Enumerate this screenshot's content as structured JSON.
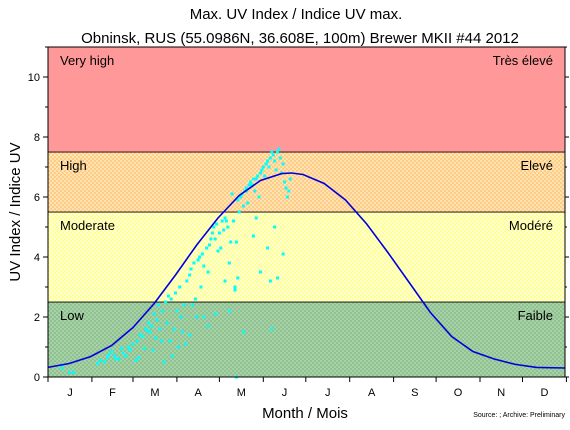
{
  "chart_data": {
    "type": "line",
    "title": "Max. UV Index / Indice UV max.",
    "subtitle": "Obninsk, RUS (55.0986N, 36.608E, 100m) Brewer MKII #44 2012",
    "xlabel": "Month / Mois",
    "ylabel": "UV Index / Indice UV",
    "source_note": "Source: ; Archive: Preliminary",
    "xlim": [
      0,
      365
    ],
    "ylim": [
      0,
      11
    ],
    "y_ticks": [
      0,
      2,
      4,
      6,
      8,
      10
    ],
    "month_labels": [
      "J",
      "F",
      "M",
      "A",
      "M",
      "J",
      "J",
      "A",
      "S",
      "O",
      "N",
      "D"
    ],
    "grid": false,
    "bands": [
      {
        "from": 0,
        "to": 2.5,
        "label_left": "Low",
        "label_right": "Faible",
        "color": "#8ec28e",
        "pattern": "#a9d1a9"
      },
      {
        "from": 2.5,
        "to": 5.5,
        "label_left": "Moderate",
        "label_right": "Modéré",
        "color": "#ffff9a",
        "pattern": "#ffffd0"
      },
      {
        "from": 5.5,
        "to": 7.5,
        "label_left": "High",
        "label_right": "Elevé",
        "color": "#ffcc88",
        "pattern": "#ffe3b0"
      },
      {
        "from": 7.5,
        "to": 11,
        "label_left": "Very high",
        "label_right": "Très élevé",
        "color": "#ff9999",
        "pattern": "#ff9999"
      }
    ],
    "series": [
      {
        "kind": "line",
        "color": "#0000dd",
        "x": [
          0,
          15,
          30,
          45,
          60,
          75,
          90,
          105,
          120,
          135,
          150,
          165,
          172,
          180,
          195,
          210,
          225,
          240,
          255,
          270,
          285,
          300,
          315,
          330,
          345,
          365
        ],
        "y": [
          0.32,
          0.45,
          0.68,
          1.05,
          1.65,
          2.45,
          3.4,
          4.4,
          5.3,
          6.05,
          6.55,
          6.78,
          6.8,
          6.75,
          6.45,
          5.9,
          5.1,
          4.15,
          3.15,
          2.15,
          1.35,
          0.85,
          0.6,
          0.42,
          0.32,
          0.3
        ]
      },
      {
        "kind": "scatter",
        "color": "#00ffff",
        "x": [
          10,
          15,
          18,
          35,
          37,
          40,
          42,
          43,
          45,
          47,
          48,
          50,
          52,
          53,
          55,
          57,
          58,
          60,
          62,
          63,
          64,
          65,
          67,
          68,
          69,
          70,
          71,
          72,
          73,
          74,
          75,
          76,
          77,
          78,
          79,
          80,
          81,
          82,
          83,
          84,
          85,
          86,
          87,
          88,
          89,
          90,
          91,
          92,
          93,
          94,
          95,
          96,
          97,
          98,
          100,
          101,
          102,
          103,
          104,
          105,
          106,
          107,
          108,
          109,
          110,
          112,
          113,
          114,
          115,
          116,
          117,
          118,
          119,
          120,
          121,
          122,
          123,
          124,
          125,
          126,
          127,
          128,
          129,
          130,
          131,
          132,
          133,
          134,
          135,
          136,
          137,
          138,
          139,
          140,
          141,
          142,
          143,
          144,
          145,
          146,
          147,
          148,
          149,
          150,
          151,
          152,
          153,
          154,
          155,
          156,
          157,
          158,
          159,
          160,
          161,
          162,
          163,
          164,
          165,
          166,
          167,
          168,
          169,
          170,
          171
        ],
        "y": [
          0.3,
          0.15,
          0.15,
          0.45,
          0.55,
          0.5,
          0.65,
          0.75,
          0.85,
          0.7,
          0.6,
          0.6,
          0.95,
          0.8,
          0.7,
          1.0,
          0.9,
          1.1,
          0.55,
          1.2,
          0.65,
          1.4,
          1.35,
          0.95,
          1.6,
          1.55,
          1.8,
          1.5,
          1.7,
          0.9,
          2.1,
          1.3,
          1.9,
          2.4,
          1.6,
          1.2,
          2.2,
          0.5,
          2.5,
          1.8,
          2.7,
          1.2,
          2.6,
          0.7,
          1.6,
          2.8,
          2.2,
          1.0,
          3.0,
          2.0,
          1.5,
          2.4,
          1.1,
          3.2,
          3.4,
          3.6,
          2.4,
          3.8,
          2.6,
          2.0,
          3.9,
          4.0,
          3.0,
          4.1,
          3.7,
          4.3,
          3.5,
          4.4,
          4.6,
          4.8,
          5.0,
          4.6,
          5.1,
          4.2,
          4.8,
          4.3,
          5.2,
          4.9,
          5.3,
          5.2,
          5.0,
          3.8,
          4.5,
          6.1,
          5.2,
          3.0,
          4.5,
          5.9,
          5.5,
          6.0,
          6.1,
          5.7,
          6.2,
          6.3,
          5.8,
          6.4,
          6.5,
          6.4,
          6.6,
          6.2,
          6.6,
          6.7,
          6.0,
          6.8,
          6.9,
          7.0,
          6.7,
          7.1,
          7.2,
          7.0,
          7.3,
          7.5,
          7.4,
          7.2,
          6.9,
          7.5,
          7.6,
          7.3,
          6.8,
          7.1,
          6.5,
          6.3,
          6.0,
          6.2,
          6.6
        ]
      }
    ],
    "extra_points": [
      {
        "x": 140,
        "y": 6.2
      },
      {
        "x": 150,
        "y": 3.5
      },
      {
        "x": 155,
        "y": 4.3
      },
      {
        "x": 157,
        "y": 3.2
      },
      {
        "x": 162,
        "y": 3.3
      },
      {
        "x": 166,
        "y": 4.1
      },
      {
        "x": 160,
        "y": 5.0
      },
      {
        "x": 158,
        "y": 1.6
      },
      {
        "x": 125,
        "y": 3.2
      },
      {
        "x": 128,
        "y": 2.2
      },
      {
        "x": 132,
        "y": 2.9
      },
      {
        "x": 134,
        "y": 3.3
      },
      {
        "x": 138,
        "y": 1.5
      },
      {
        "x": 145,
        "y": 4.7
      },
      {
        "x": 147,
        "y": 5.3
      },
      {
        "x": 133,
        "y": 0.0
      },
      {
        "x": 118,
        "y": 2.1
      },
      {
        "x": 113,
        "y": 1.7
      },
      {
        "x": 110,
        "y": 2.0
      },
      {
        "x": 100,
        "y": 1.4
      }
    ]
  }
}
